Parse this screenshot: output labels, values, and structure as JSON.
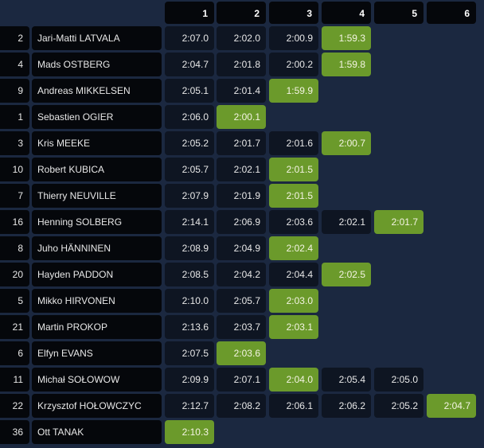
{
  "stages": [
    "1",
    "2",
    "3",
    "4",
    "5",
    "6"
  ],
  "colors": {
    "best": "#6b9a2b",
    "cell": "#0e1522",
    "background": "#1b2840"
  },
  "rows": [
    {
      "num": "2",
      "name": "Jari-Matti LATVALA",
      "times": [
        "2:07.0",
        "2:02.0",
        "2:00.9",
        "1:59.3"
      ],
      "best": 3
    },
    {
      "num": "4",
      "name": "Mads OSTBERG",
      "times": [
        "2:04.7",
        "2:01.8",
        "2:00.2",
        "1:59.8"
      ],
      "best": 3
    },
    {
      "num": "9",
      "name": "Andreas MIKKELSEN",
      "times": [
        "2:05.1",
        "2:01.4",
        "1:59.9"
      ],
      "best": 2
    },
    {
      "num": "1",
      "name": "Sebastien OGIER",
      "times": [
        "2:06.0",
        "2:00.1"
      ],
      "best": 1
    },
    {
      "num": "3",
      "name": "Kris MEEKE",
      "times": [
        "2:05.2",
        "2:01.7",
        "2:01.6",
        "2:00.7"
      ],
      "best": 3
    },
    {
      "num": "10",
      "name": "Robert KUBICA",
      "times": [
        "2:05.7",
        "2:02.1",
        "2:01.5"
      ],
      "best": 2
    },
    {
      "num": "7",
      "name": "Thierry NEUVILLE",
      "times": [
        "2:07.9",
        "2:01.9",
        "2:01.5"
      ],
      "best": 2
    },
    {
      "num": "16",
      "name": "Henning SOLBERG",
      "times": [
        "2:14.1",
        "2:06.9",
        "2:03.6",
        "2:02.1",
        "2:01.7"
      ],
      "best": 4
    },
    {
      "num": "8",
      "name": "Juho HÄNNINEN",
      "times": [
        "2:08.9",
        "2:04.9",
        "2:02.4"
      ],
      "best": 2
    },
    {
      "num": "20",
      "name": "Hayden PADDON",
      "times": [
        "2:08.5",
        "2:04.2",
        "2:04.4",
        "2:02.5"
      ],
      "best": 3
    },
    {
      "num": "5",
      "name": "Mikko HIRVONEN",
      "times": [
        "2:10.0",
        "2:05.7",
        "2:03.0"
      ],
      "best": 2
    },
    {
      "num": "21",
      "name": "Martin PROKOP",
      "times": [
        "2:13.6",
        "2:03.7",
        "2:03.1"
      ],
      "best": 2
    },
    {
      "num": "6",
      "name": "Elfyn EVANS",
      "times": [
        "2:07.5",
        "2:03.6"
      ],
      "best": 1
    },
    {
      "num": "11",
      "name": "Michał SOŁOWOW",
      "times": [
        "2:09.9",
        "2:07.1",
        "2:04.0",
        "2:05.4",
        "2:05.0"
      ],
      "best": 2
    },
    {
      "num": "22",
      "name": "Krzysztof HOŁOWCZYC",
      "times": [
        "2:12.7",
        "2:08.2",
        "2:06.1",
        "2:06.2",
        "2:05.2",
        "2:04.7"
      ],
      "best": 5
    },
    {
      "num": "36",
      "name": "Ott TANAK",
      "times": [
        "2:10.3"
      ],
      "best": 0
    }
  ]
}
